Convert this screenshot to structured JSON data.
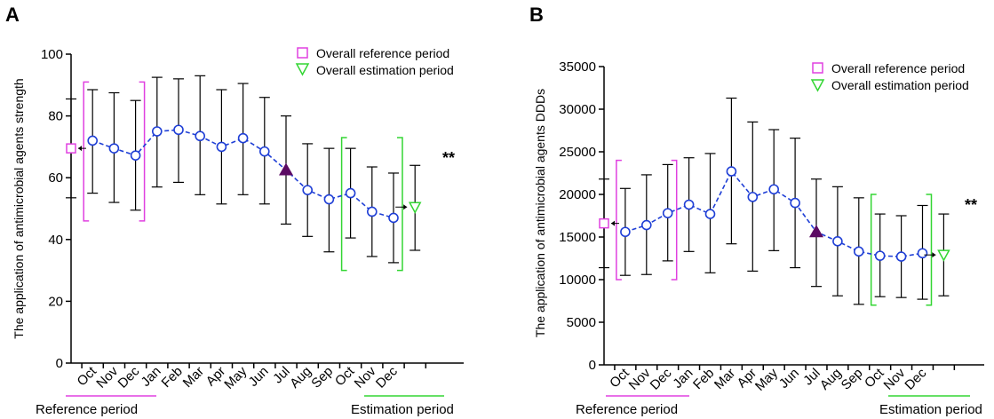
{
  "colors": {
    "series": "#1f3fd6",
    "reference": "#e040e0",
    "estimation": "#33d633",
    "intervention": "#5b0a63",
    "axis": "#000000"
  },
  "chart_data": [
    {
      "panel": "A",
      "type": "line",
      "ylabel": "The application of antimicrobial agents strength",
      "ylim": [
        0,
        100
      ],
      "yticks": [
        0,
        20,
        40,
        60,
        80,
        100
      ],
      "categories": [
        "Oct",
        "Nov",
        "Dec",
        "Jan",
        "Feb",
        "Mar",
        "Apr",
        "May",
        "Jun",
        "Jul",
        "Aug",
        "Sep",
        "Oct",
        "Nov",
        "Dec"
      ],
      "values": [
        72,
        69.5,
        67.2,
        75,
        75.5,
        73.5,
        70,
        72.8,
        68.5,
        62.5,
        56,
        53,
        55,
        49,
        47
      ],
      "error_low": [
        55,
        52,
        49.5,
        57,
        58.5,
        54.5,
        51.5,
        54.5,
        51.5,
        45,
        41,
        36,
        40.5,
        34.5,
        32.5
      ],
      "error_high": [
        88.5,
        87.5,
        85,
        92.5,
        92,
        93,
        88.5,
        90.5,
        86,
        80,
        71,
        69.5,
        69.5,
        63.5,
        61.5
      ],
      "intervention_index": 9,
      "legend": [
        "Overall reference period",
        "Overall estimation period"
      ],
      "legend_position": "top-right",
      "overall_reference": {
        "value": 69.5,
        "low": 53.5,
        "high": 85.5
      },
      "overall_estimation": {
        "value": 50.5,
        "low": 36.5,
        "high": 64
      },
      "reference_bracket": [
        46,
        91
      ],
      "estimation_bracket": [
        30,
        73
      ],
      "significance": "**",
      "reference_label": "Reference period",
      "estimation_label": "Estimation period"
    },
    {
      "panel": "B",
      "type": "line",
      "ylabel": "The application of antimicrobial agents DDDs",
      "ylim": [
        0,
        35000
      ],
      "yticks": [
        0,
        5000,
        10000,
        15000,
        20000,
        25000,
        30000,
        35000
      ],
      "categories": [
        "Oct",
        "Nov",
        "Dec",
        "Jan",
        "Feb",
        "Mar",
        "Apr",
        "May",
        "Jun",
        "Jul",
        "Aug",
        "Sep",
        "Oct",
        "Nov",
        "Dec"
      ],
      "values": [
        15600,
        16400,
        17800,
        18800,
        17700,
        22700,
        19700,
        20600,
        19000,
        15600,
        14500,
        13300,
        12800,
        12700,
        13100
      ],
      "error_low": [
        10500,
        10600,
        12200,
        13300,
        10800,
        14200,
        11000,
        13400,
        11400,
        9200,
        8100,
        7100,
        8000,
        7900,
        7700
      ],
      "error_high": [
        20700,
        22300,
        23500,
        24300,
        24800,
        31300,
        28500,
        27600,
        26600,
        21800,
        20900,
        19600,
        17700,
        17500,
        18700
      ],
      "intervention_index": 9,
      "legend": [
        "Overall reference period",
        "Overall estimation period"
      ],
      "legend_position": "top-right",
      "overall_reference": {
        "value": 16600,
        "low": 11400,
        "high": 21800
      },
      "overall_estimation": {
        "value": 12900,
        "low": 8100,
        "high": 17700
      },
      "reference_bracket": [
        10000,
        24000
      ],
      "estimation_bracket": [
        7000,
        20000
      ],
      "significance": "**",
      "reference_label": "Reference period",
      "estimation_label": "Estimation period"
    }
  ]
}
